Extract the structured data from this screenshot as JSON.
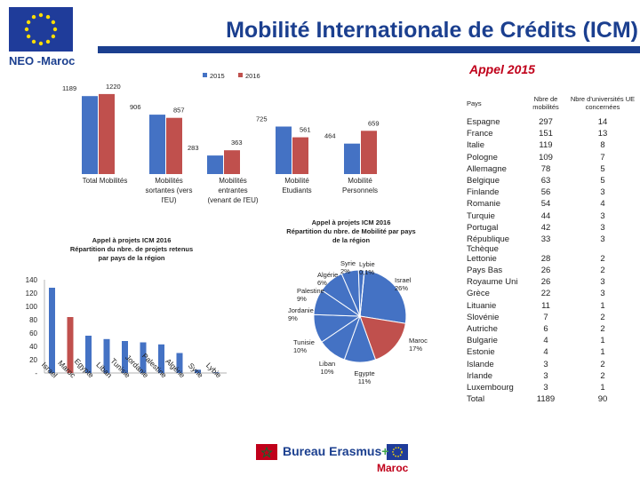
{
  "header": {
    "title": "Mobilité Internationale de Crédits (ICM)",
    "organization": "NEO -Maroc",
    "subtitle": "Appel 2015",
    "brand_blue": "#1b3f8f",
    "brand_red": "#c0001a"
  },
  "footer": {
    "office_prefix": "Bureau ",
    "erasmus_word": "Erasmus",
    "erasmus_plus": "+",
    "country": "Maroc"
  },
  "chart_data": [
    {
      "type": "bar",
      "categories": [
        "Total Mobilités",
        "Mobilités sortantes (vers l'EU)",
        "Mobilités entrantes (venant de l'EU)",
        "Mobilité Etudiants",
        "Mobilité Personnels"
      ],
      "series": [
        {
          "name": "2015",
          "values": [
            1189,
            906,
            283,
            725,
            464
          ],
          "color": "#4472c4"
        },
        {
          "name": "2016",
          "values": [
            1220,
            857,
            363,
            561,
            659
          ],
          "color": "#c0504d"
        }
      ],
      "legend": "top",
      "ylim": [
        0,
        1300
      ],
      "grid": false
    },
    {
      "type": "bar",
      "title": "Appel à projets ICM 2016 Répartition du nbre. de projets retenus par pays de la région",
      "categories": [
        "Israel",
        "Maroc",
        "Egypte",
        "Liban",
        "Tunisie",
        "Jordanie",
        "Palestine",
        "Algérie",
        "Syrie",
        "Lybie"
      ],
      "values": [
        128,
        84,
        56,
        51,
        48,
        46,
        43,
        30,
        5,
        1
      ],
      "colors": [
        "#4472c4",
        "#c0504d",
        "#4472c4",
        "#4472c4",
        "#4472c4",
        "#4472c4",
        "#4472c4",
        "#4472c4",
        "#4472c4",
        "#4472c4"
      ],
      "yticks": [
        "140",
        "120",
        "100",
        "80",
        "60",
        "40",
        "20",
        "-"
      ],
      "ylim": [
        0,
        140
      ],
      "grid": false
    },
    {
      "type": "pie",
      "title": "Appel à projets ICM 2016 Répartition du nbre. de Mobilité par pays de la région",
      "slices": [
        {
          "label": "Israel",
          "pct_label": "26%",
          "value": 26,
          "color": "#4472c4"
        },
        {
          "label": "Maroc",
          "pct_label": "17%",
          "value": 17,
          "color": "#c0504d"
        },
        {
          "label": "Egypte",
          "pct_label": "11%",
          "value": 11,
          "color": "#4472c4"
        },
        {
          "label": "Liban",
          "pct_label": "10%",
          "value": 10,
          "color": "#4472c4"
        },
        {
          "label": "Tunisie",
          "pct_label": "10%",
          "value": 10,
          "color": "#4472c4"
        },
        {
          "label": "Jordanie",
          "pct_label": "9%",
          "value": 9,
          "color": "#4472c4"
        },
        {
          "label": "Palestine",
          "pct_label": "9%",
          "value": 9,
          "color": "#4472c4"
        },
        {
          "label": "Algérie",
          "pct_label": "6%",
          "value": 6,
          "color": "#4472c4"
        },
        {
          "label": "Syrie",
          "pct_label": "2%",
          "value": 2,
          "color": "#4472c4"
        },
        {
          "label": "Lybie",
          "pct_label": "0,1%",
          "value": 0.1,
          "color": "#4472c4"
        }
      ]
    },
    {
      "type": "table",
      "columns": [
        "Pays",
        "Nbre de mobilités",
        "Nbre d'universités UE concernées"
      ],
      "rows": [
        [
          "Espagne",
          "297",
          "14"
        ],
        [
          "France",
          "151",
          "13"
        ],
        [
          "Italie",
          "119",
          "8"
        ],
        [
          "Pologne",
          "109",
          "7"
        ],
        [
          "Allemagne",
          "78",
          "5"
        ],
        [
          "Belgique",
          "63",
          "5"
        ],
        [
          "Finlande",
          "56",
          "3"
        ],
        [
          "Romanie",
          "54",
          "4"
        ],
        [
          "Turquie",
          "44",
          "3"
        ],
        [
          "Portugal",
          "42",
          "3"
        ],
        [
          "République Tchèque",
          "33",
          "3"
        ],
        [
          "Lettonie",
          "28",
          "2"
        ],
        [
          "Pays Bas",
          "26",
          "2"
        ],
        [
          "Royaume Uni",
          "26",
          "3"
        ],
        [
          "Grèce",
          "22",
          "3"
        ],
        [
          "Lituanie",
          "11",
          "1"
        ],
        [
          "Slovénie",
          "7",
          "2"
        ],
        [
          "Autriche",
          "6",
          "2"
        ],
        [
          "Bulgarie",
          "4",
          "1"
        ],
        [
          "Estonie",
          "4",
          "1"
        ],
        [
          "Islande",
          "3",
          "2"
        ],
        [
          "Irlande",
          "3",
          "2"
        ],
        [
          "Luxembourg",
          "3",
          "1"
        ],
        [
          "Total",
          "1189",
          "90"
        ]
      ]
    }
  ]
}
